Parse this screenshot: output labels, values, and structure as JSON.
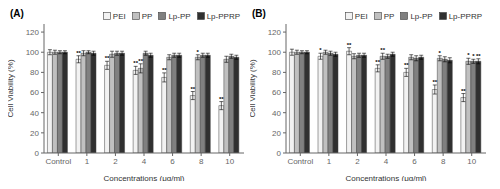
{
  "chart_data": [
    {
      "type": "bar",
      "title": "(A)",
      "xlabel": "Concentrations (μg/ml)",
      "ylabel": "Cell Viability (%)",
      "categories": [
        "Control",
        "1",
        "2",
        "4",
        "6",
        "8",
        "10"
      ],
      "ylim": [
        0,
        128
      ],
      "yticks": [
        0,
        20,
        40,
        60,
        80,
        100,
        120
      ],
      "grid": false,
      "legend": "upper right",
      "series": [
        {
          "name": "PEI",
          "color": "#f2f2f2",
          "values": [
            100,
            93,
            87,
            82,
            75,
            57,
            47
          ],
          "errors": [
            2.5,
            3.5,
            4.0,
            4.0,
            4.5,
            4.0,
            4.0
          ],
          "annotations": [
            null,
            "**",
            "**",
            "**",
            "**",
            "**",
            "**"
          ]
        },
        {
          "name": "PP",
          "color": "#c0c0c0",
          "values": [
            100,
            99,
            98,
            84,
            95,
            95,
            93
          ],
          "errors": [
            2.0,
            2.5,
            3.0,
            4.5,
            2.5,
            2.5,
            3.0
          ],
          "annotations": [
            null,
            null,
            null,
            "**",
            null,
            "*",
            null
          ]
        },
        {
          "name": "Lp-PP",
          "color": "#808080",
          "values": [
            100,
            100,
            99,
            99,
            97,
            97,
            96
          ],
          "errors": [
            1.5,
            1.5,
            2.0,
            2.0,
            2.0,
            2.0,
            2.0
          ],
          "annotations": [
            null,
            null,
            null,
            null,
            null,
            null,
            null
          ]
        },
        {
          "name": "Lp-PPRP",
          "color": "#303030",
          "values": [
            100,
            99,
            99,
            97,
            97,
            97,
            95
          ],
          "errors": [
            1.5,
            2.0,
            2.0,
            2.0,
            2.0,
            2.0,
            2.0
          ],
          "annotations": [
            null,
            null,
            null,
            null,
            null,
            null,
            null
          ]
        }
      ]
    },
    {
      "type": "bar",
      "title": "(B)",
      "xlabel": "Concentrations (μg/ml)",
      "ylabel": "Cell Viability (%)",
      "categories": [
        "Control",
        "1",
        "2",
        "4",
        "6",
        "8",
        "10"
      ],
      "ylim": [
        0,
        128
      ],
      "yticks": [
        0,
        20,
        40,
        60,
        80,
        100,
        120
      ],
      "grid": false,
      "legend": "upper right",
      "series": [
        {
          "name": "PEI",
          "color": "#f2f2f2",
          "values": [
            100,
            96,
            101,
            84,
            80,
            63,
            55
          ],
          "errors": [
            3.0,
            3.0,
            3.5,
            3.5,
            4.0,
            4.5,
            4.0
          ],
          "annotations": [
            null,
            "*",
            "**",
            "**",
            "**",
            "**",
            "**"
          ]
        },
        {
          "name": "PP",
          "color": "#c0c0c0",
          "values": [
            100,
            100,
            96,
            96,
            95,
            94,
            91
          ],
          "errors": [
            2.0,
            2.0,
            2.5,
            3.0,
            2.5,
            2.5,
            3.0
          ],
          "annotations": [
            null,
            null,
            null,
            "**",
            null,
            "*",
            "*"
          ]
        },
        {
          "name": "Lp-PP",
          "color": "#808080",
          "values": [
            100,
            99,
            97,
            96,
            94,
            93,
            91
          ],
          "errors": [
            1.5,
            2.0,
            2.0,
            2.0,
            2.5,
            2.5,
            2.0
          ],
          "annotations": [
            null,
            null,
            null,
            null,
            null,
            null,
            "*"
          ]
        },
        {
          "name": "Lp-PPRP",
          "color": "#303030",
          "values": [
            100,
            98,
            97,
            98,
            95,
            92,
            91
          ],
          "errors": [
            1.5,
            2.0,
            2.0,
            2.0,
            2.0,
            2.5,
            2.5
          ],
          "annotations": [
            null,
            null,
            null,
            null,
            null,
            null,
            "**"
          ]
        }
      ]
    }
  ]
}
